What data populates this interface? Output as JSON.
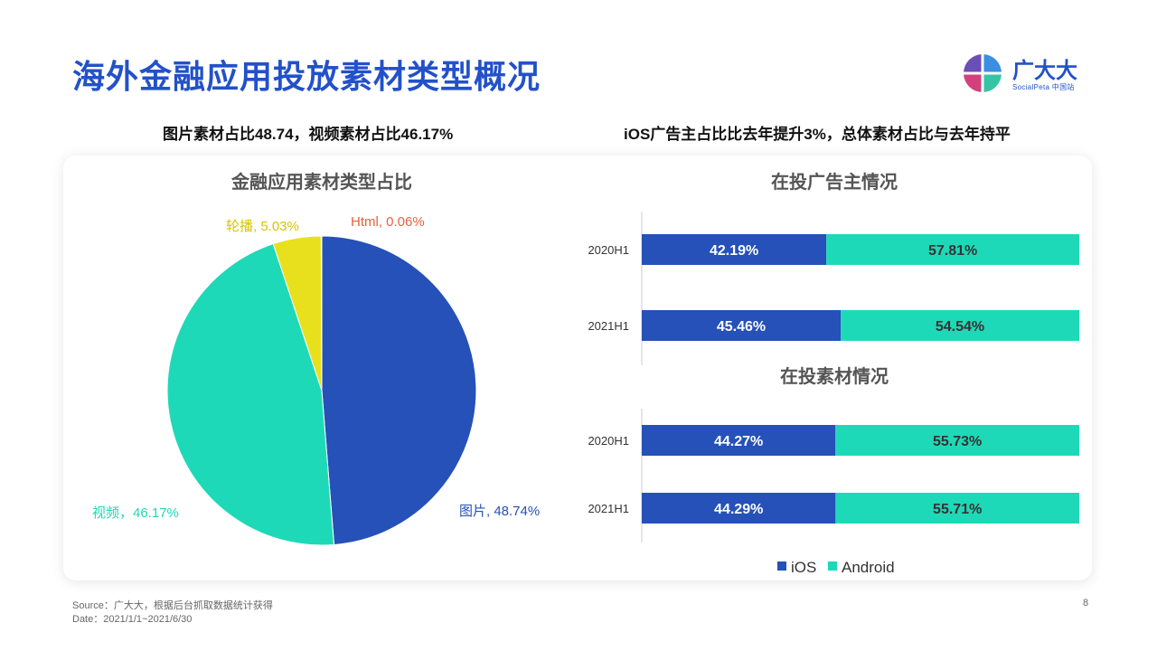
{
  "page": {
    "title": "海外金融应用投放素材类型概况",
    "logo": {
      "cn": "广大大",
      "en": "SocialPeta 中国站"
    },
    "subheads": {
      "left": "图片素材占比48.74，视频素材占比46.17%",
      "right": "iOS广告主占比比去年提升3%，总体素材占比与去年持平"
    },
    "footer": {
      "source": "Source：广大大，根据后台抓取数据统计获得",
      "date": "Date：2021/1/1~2021/6/30"
    },
    "page_number": "8"
  },
  "colors": {
    "title": "#2251c9",
    "image": "#2551b8",
    "video": "#1ed9b8",
    "carousel": "#e8e01c",
    "html": "#e8603c",
    "ios": "#2551b8",
    "android": "#1ed9b8"
  },
  "chart_data": [
    {
      "type": "pie",
      "title": "金融应用素材类型占比",
      "slices": [
        {
          "label": "图片",
          "value": 48.74,
          "display": "图片, 48.74%",
          "color": "#2551b8"
        },
        {
          "label": "视频",
          "value": 46.17,
          "display": "视频，46.17%",
          "color": "#1ed9b8"
        },
        {
          "label": "轮播",
          "value": 5.03,
          "display": "轮播, 5.03%",
          "color": "#e8e01c"
        },
        {
          "label": "Html",
          "value": 0.06,
          "display": "Html, 0.06%",
          "color": "#e8603c"
        }
      ]
    },
    {
      "type": "bar",
      "stacked": true,
      "orientation": "horizontal",
      "title": "在投广告主情况",
      "categories": [
        "2020H1",
        "2021H1"
      ],
      "series": [
        {
          "name": "iOS",
          "values": [
            42.19,
            45.46
          ],
          "labels": [
            "42.19%",
            "45.46%"
          ]
        },
        {
          "name": "Android",
          "values": [
            57.81,
            54.54
          ],
          "labels": [
            "57.81%",
            "54.54%"
          ]
        }
      ]
    },
    {
      "type": "bar",
      "stacked": true,
      "orientation": "horizontal",
      "title": "在投素材情况",
      "categories": [
        "2020H1",
        "2021H1"
      ],
      "series": [
        {
          "name": "iOS",
          "values": [
            44.27,
            44.29
          ],
          "labels": [
            "44.27%",
            "44.29%"
          ]
        },
        {
          "name": "Android",
          "values": [
            55.73,
            55.71
          ],
          "labels": [
            "55.73%",
            "55.71%"
          ]
        }
      ],
      "legend": [
        "iOS",
        "Android"
      ]
    }
  ]
}
